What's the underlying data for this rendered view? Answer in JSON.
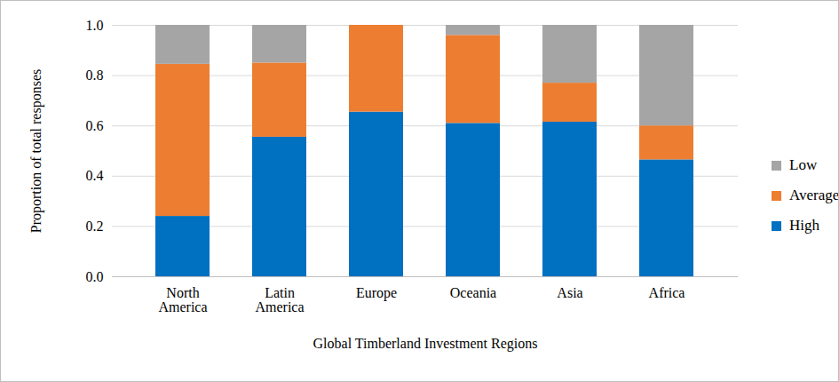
{
  "chart_data": {
    "type": "bar",
    "stacked": true,
    "categories": [
      "North America",
      "Latin America",
      "Europe",
      "Oceania",
      "Asia",
      "Africa"
    ],
    "series": [
      {
        "name": "High",
        "color": "#0070C0",
        "values": [
          0.24,
          0.555,
          0.655,
          0.61,
          0.615,
          0.465
        ]
      },
      {
        "name": "Average",
        "color": "#ED7D31",
        "values": [
          0.605,
          0.295,
          0.345,
          0.35,
          0.155,
          0.135
        ]
      },
      {
        "name": "Low",
        "color": "#A5A5A5",
        "values": [
          0.155,
          0.15,
          0,
          0.04,
          0.23,
          0.4
        ]
      }
    ],
    "x_label": "Global Timberland Investment Regions",
    "y_label": "Proportion of total responses",
    "ylim": [
      0,
      1
    ],
    "yticks": [
      {
        "value": 0,
        "label": "0.0"
      },
      0.2,
      0.4,
      0.6,
      0.8,
      {
        "value": 1,
        "label": "1.0"
      }
    ],
    "grid": true,
    "legend": "right"
  }
}
